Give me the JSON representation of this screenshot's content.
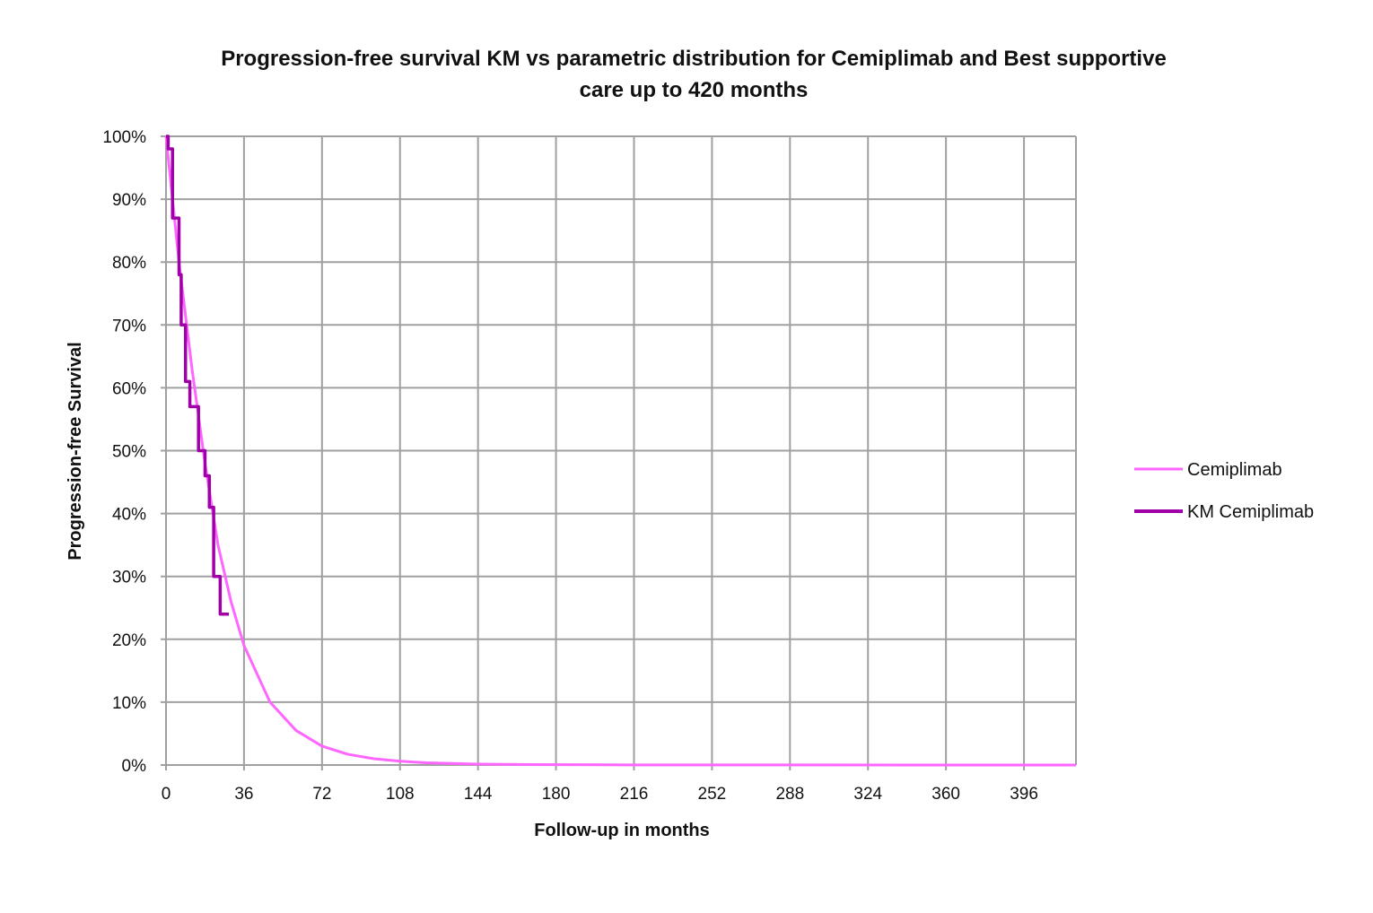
{
  "chart_data": {
    "type": "line",
    "title_lines": [
      "Progression-free survival KM vs parametric distribution for Cemiplimab and Best supportive",
      "care up to 420 months"
    ],
    "xlabel": "Follow-up in months",
    "ylabel": "Progression-free Survival",
    "xlim": [
      0,
      420
    ],
    "ylim": [
      0,
      100
    ],
    "x_ticks": [
      0,
      36,
      72,
      108,
      144,
      180,
      216,
      252,
      288,
      324,
      360,
      396
    ],
    "y_ticks": [
      "0%",
      "10%",
      "20%",
      "30%",
      "40%",
      "50%",
      "60%",
      "70%",
      "80%",
      "90%",
      "100%"
    ],
    "grid": true,
    "legend_position": "right",
    "series": [
      {
        "name": "Cemiplimab",
        "color": "#ff66ff",
        "step": false,
        "x": [
          0,
          6,
          12,
          18,
          24,
          30,
          36,
          48,
          60,
          72,
          84,
          96,
          108,
          120,
          144,
          168,
          216,
          420
        ],
        "y": [
          100,
          80,
          63,
          48,
          35,
          26,
          19,
          10,
          5.5,
          3,
          1.7,
          1,
          0.6,
          0.35,
          0.15,
          0.07,
          0.02,
          0
        ]
      },
      {
        "name": "KM Cemiplimab",
        "color": "#a000a8",
        "step": true,
        "x": [
          0,
          1,
          3,
          6,
          7,
          9,
          11,
          15,
          18,
          20,
          22,
          25,
          29
        ],
        "y": [
          100,
          98,
          87,
          78,
          70,
          61,
          57,
          50,
          46,
          41,
          30,
          24,
          24
        ]
      }
    ]
  }
}
